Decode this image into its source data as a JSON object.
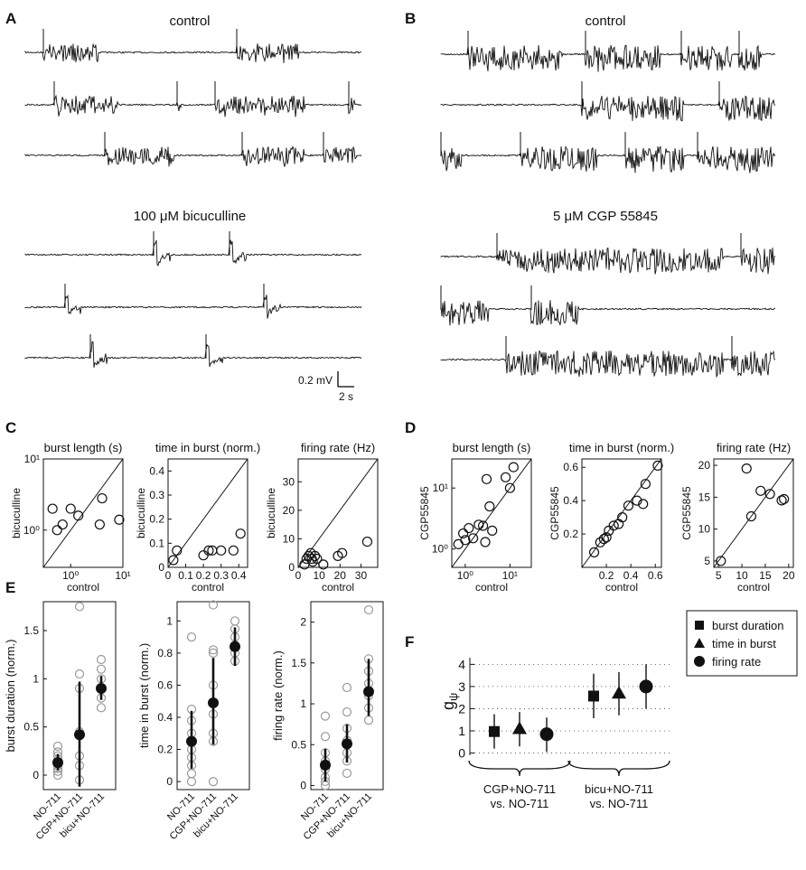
{
  "panels": {
    "A": {
      "letter": "A",
      "control_title": "control",
      "drug_title": "100 μM bicuculline",
      "scalebar_v": "0.2 mV",
      "scalebar_h": "2 s"
    },
    "B": {
      "letter": "B",
      "control_title": "control",
      "drug_title": "5 μM CGP 55845"
    },
    "C": {
      "letter": "C",
      "ylabel": "bicuculline",
      "xlabel": "control",
      "plots": [
        {
          "title": "burst length (s)",
          "type": "scatter",
          "scale": "log",
          "range": [
            0.3,
            10
          ],
          "ticks": [
            "10⁰",
            "10¹"
          ],
          "x": [
            0.45,
            0.55,
            0.7,
            1.0,
            1.4,
            3.6,
            4.0,
            8.5
          ],
          "y": [
            2.0,
            1.0,
            1.2,
            2.0,
            1.6,
            1.2,
            2.8,
            1.4
          ]
        },
        {
          "title": "time in burst (norm.)",
          "type": "scatter",
          "range": [
            0,
            0.45
          ],
          "ticks": [
            "0",
            "0.1",
            "0.2",
            "0.3",
            "0.4"
          ],
          "x": [
            0.03,
            0.05,
            0.2,
            0.23,
            0.25,
            0.3,
            0.37,
            0.41
          ],
          "y": [
            0.03,
            0.07,
            0.05,
            0.07,
            0.07,
            0.07,
            0.07,
            0.14
          ]
        },
        {
          "title": "firing rate (Hz)",
          "type": "scatter",
          "range": [
            0,
            38
          ],
          "ticks": [
            "0",
            "10",
            "20",
            "30"
          ],
          "x": [
            3,
            4,
            5,
            6,
            6.5,
            7,
            8,
            9,
            12,
            19,
            21,
            33
          ],
          "y": [
            1,
            3,
            4,
            5,
            3,
            2,
            4,
            3,
            1,
            4,
            5,
            9
          ]
        }
      ]
    },
    "D": {
      "letter": "D",
      "ylabel": "CGP55845",
      "xlabel": "control",
      "plots": [
        {
          "title": "burst length (s)",
          "type": "scatter",
          "scale": "log",
          "range": [
            0.5,
            30
          ],
          "ticks": [
            "10⁰",
            "10¹"
          ],
          "x": [
            0.7,
            0.9,
            1.0,
            1.2,
            1.5,
            2.0,
            2.5,
            2.8,
            3.0,
            3.5,
            4.0,
            8.0,
            10.0,
            12.0
          ],
          "y": [
            1.2,
            1.8,
            1.4,
            2.2,
            1.5,
            2.5,
            2.4,
            1.3,
            14,
            5,
            2.0,
            15,
            10,
            22
          ]
        },
        {
          "title": "time in burst (norm.)",
          "type": "scatter",
          "range": [
            0,
            0.65
          ],
          "ticks": [
            "0.2",
            "0.4",
            "0.6"
          ],
          "x": [
            0.1,
            0.15,
            0.18,
            0.2,
            0.22,
            0.26,
            0.3,
            0.33,
            0.38,
            0.45,
            0.5,
            0.52,
            0.62
          ],
          "y": [
            0.09,
            0.15,
            0.17,
            0.18,
            0.22,
            0.25,
            0.26,
            0.3,
            0.37,
            0.4,
            0.38,
            0.5,
            0.61
          ]
        },
        {
          "title": "firing rate (Hz)",
          "type": "scatter",
          "range": [
            4,
            21
          ],
          "ticks": [
            "5",
            "10",
            "15",
            "20"
          ],
          "yticks": [
            "5",
            "10",
            "15",
            "20"
          ],
          "x": [
            5.5,
            11,
            12,
            14,
            16,
            18.5,
            19
          ],
          "y": [
            5,
            19.5,
            12,
            16,
            15.5,
            14.5,
            14.7
          ]
        }
      ]
    },
    "E": {
      "letter": "E",
      "categories": [
        "NO-711",
        "CGP+NO-711",
        "bicu+NO-711"
      ],
      "plots": [
        {
          "ylabel": "burst duration (norm.)",
          "type": "scatter",
          "ylim": [
            -0.15,
            1.8
          ],
          "ticks": [
            "0",
            "0.5",
            "1",
            "1.5"
          ],
          "tickvals": [
            0,
            0.5,
            1,
            1.5
          ],
          "means": [
            0.13,
            0.42,
            0.9
          ],
          "err": [
            [
              0.05,
              0.22
            ],
            [
              -0.12,
              0.97
            ],
            [
              0.78,
              1.03
            ]
          ],
          "points": [
            [
              0.0,
              0.04,
              0.07,
              0.1,
              0.13,
              0.16,
              0.2,
              0.24,
              0.3
            ],
            [
              -0.05,
              0.1,
              0.2,
              0.45,
              0.9,
              1.05,
              1.75
            ],
            [
              0.7,
              0.8,
              0.9,
              1.0,
              1.1,
              1.2
            ]
          ]
        },
        {
          "ylabel": "time in burst (norm.)",
          "type": "scatter",
          "ylim": [
            -0.05,
            1.12
          ],
          "ticks": [
            "0",
            "0.2",
            "0.4",
            "0.6",
            "0.8",
            "1"
          ],
          "tickvals": [
            0,
            0.2,
            0.4,
            0.6,
            0.8,
            1
          ],
          "means": [
            0.25,
            0.49,
            0.84
          ],
          "err": [
            [
              0.08,
              0.44
            ],
            [
              0.23,
              0.77
            ],
            [
              0.72,
              0.96
            ]
          ],
          "points": [
            [
              0.0,
              0.05,
              0.1,
              0.15,
              0.2,
              0.3,
              0.38,
              0.45,
              0.9
            ],
            [
              0.0,
              0.25,
              0.3,
              0.42,
              0.6,
              0.8,
              0.82,
              1.1
            ],
            [
              0.75,
              0.8,
              0.85,
              0.9,
              0.95,
              1.0
            ]
          ]
        },
        {
          "ylabel": "firing rate (norm.)",
          "type": "scatter",
          "ylim": [
            -0.05,
            2.25
          ],
          "ticks": [
            "0",
            "0.5",
            "1",
            "1.5",
            "2"
          ],
          "tickvals": [
            0,
            0.5,
            1,
            1.5,
            2
          ],
          "means": [
            0.25,
            0.51,
            1.15
          ],
          "err": [
            [
              0.05,
              0.45
            ],
            [
              0.28,
              0.75
            ],
            [
              0.85,
              1.55
            ]
          ],
          "points": [
            [
              0.0,
              0.05,
              0.1,
              0.2,
              0.3,
              0.4,
              0.6,
              0.85
            ],
            [
              0.15,
              0.3,
              0.4,
              0.55,
              0.7,
              0.9,
              1.2
            ],
            [
              0.8,
              0.95,
              1.1,
              1.25,
              1.4,
              1.55,
              2.15
            ]
          ]
        }
      ]
    },
    "F": {
      "letter": "F",
      "ylabel": "g",
      "ylabel_sub": "ψ",
      "type": "scatter",
      "ylim": [
        -0.1,
        4.3
      ],
      "ticks": [
        "0",
        "1",
        "2",
        "3",
        "4"
      ],
      "tickvals": [
        0,
        1,
        2,
        3,
        4
      ],
      "groups": [
        {
          "label_1": "CGP+NO-711",
          "label_2": "vs. NO-711"
        },
        {
          "label_1": "bicu+NO-711",
          "label_2": "vs. NO-711"
        }
      ],
      "series": [
        {
          "name": "burst duration",
          "marker": "square",
          "values": [
            0.97,
            2.57
          ],
          "err": [
            [
              0.2,
              1.75
            ],
            [
              1.57,
              3.58
            ]
          ]
        },
        {
          "name": "time in burst",
          "marker": "triangle",
          "values": [
            1.1,
            2.7
          ],
          "err": [
            [
              0.3,
              1.85
            ],
            [
              1.7,
              3.65
            ]
          ]
        },
        {
          "name": "firing rate",
          "marker": "circle",
          "values": [
            0.85,
            3.0
          ],
          "err": [
            [
              0.05,
              1.6
            ],
            [
              2.0,
              4.0
            ]
          ]
        }
      ]
    }
  }
}
